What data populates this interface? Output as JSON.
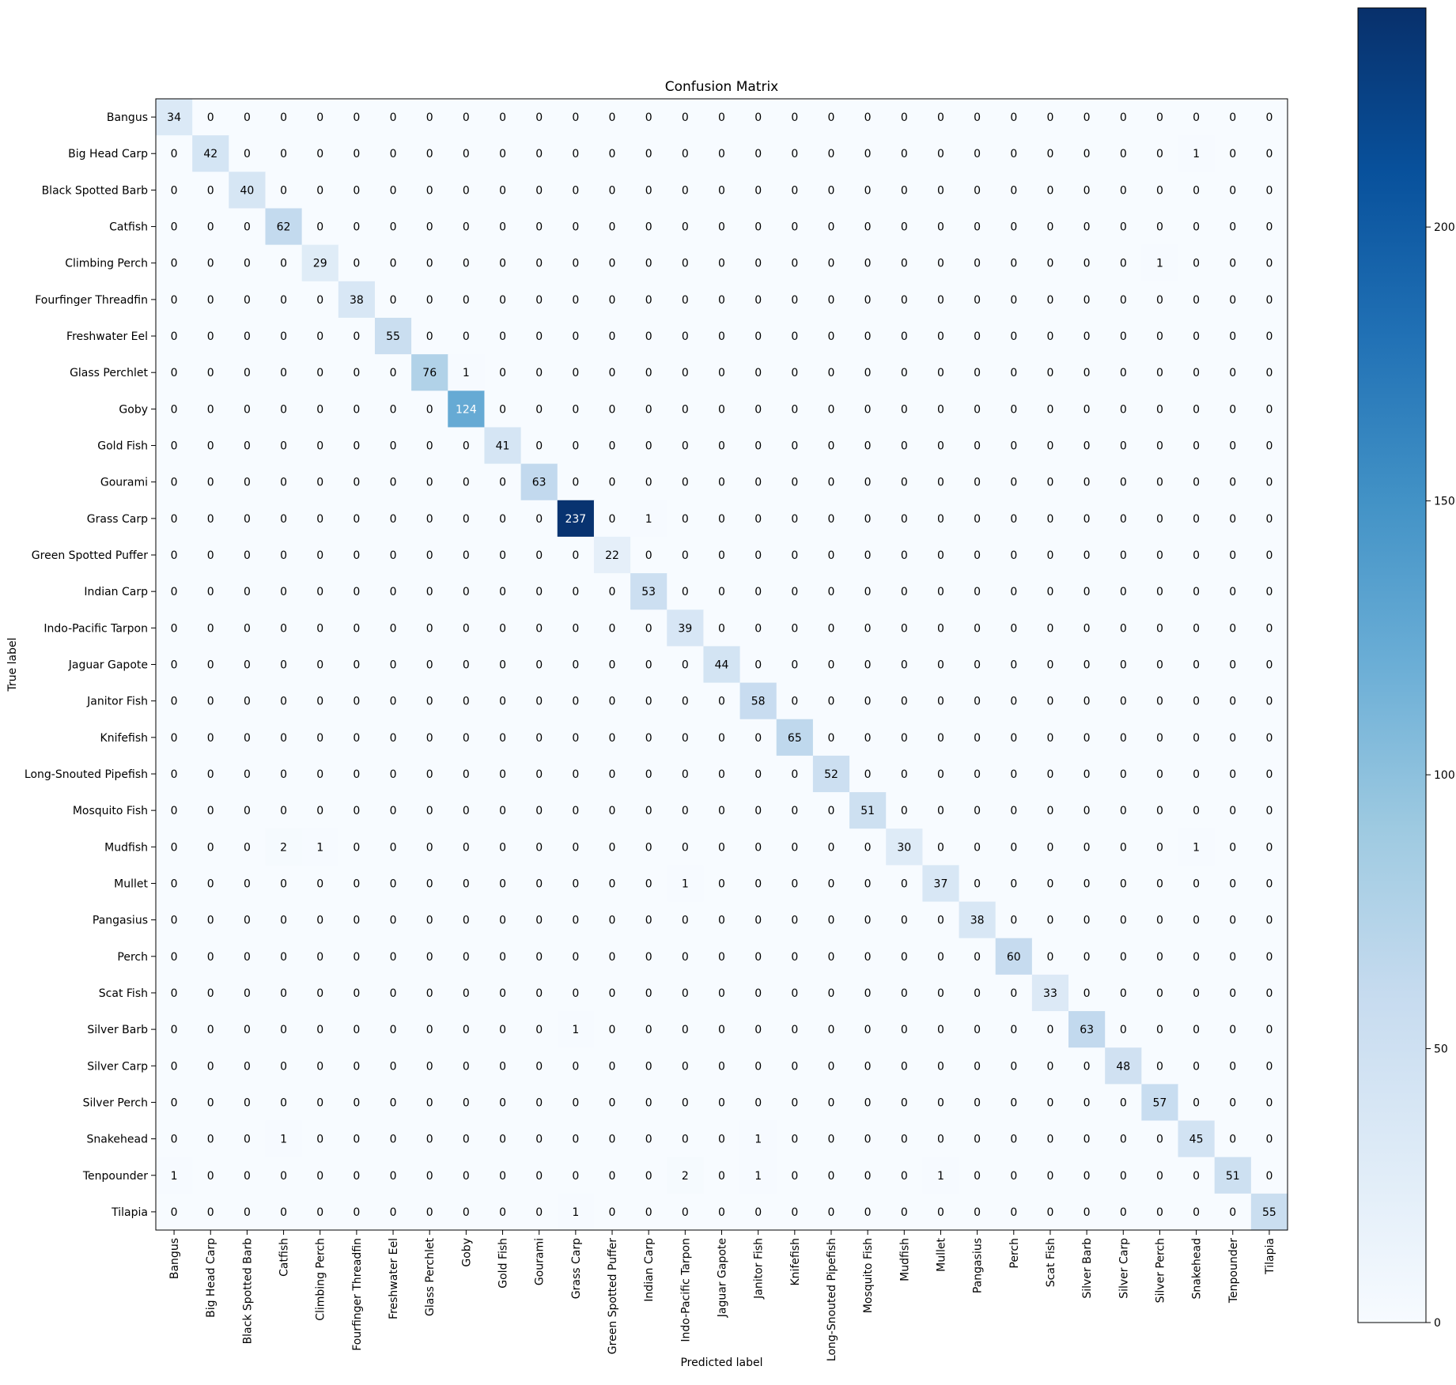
{
  "chart_data": {
    "type": "heatmap",
    "title": "Confusion Matrix",
    "xlabel": "Predicted label",
    "ylabel": "True label",
    "colormap": "Blues",
    "color_low": "#f7fbff",
    "color_high": "#08306b",
    "color_range": [
      0,
      240
    ],
    "colorbar_ticks": [
      0,
      50,
      100,
      150,
      200
    ],
    "annotation_text_colors": {
      "light_cell": "#000000",
      "dark_cell": "#ffffff"
    },
    "grid": false,
    "categories": [
      "Bangus",
      "Big Head Carp",
      "Black Spotted Barb",
      "Catfish",
      "Climbing Perch",
      "Fourfinger Threadfin",
      "Freshwater Eel",
      "Glass Perchlet",
      "Goby",
      "Gold Fish",
      "Gourami",
      "Grass Carp",
      "Green Spotted Puffer",
      "Indian Carp",
      "Indo-Pacific Tarpon",
      "Jaguar Gapote",
      "Janitor Fish",
      "Knifefish",
      "Long-Snouted Pipefish",
      "Mosquito Fish",
      "Mudfish",
      "Mullet",
      "Pangasius",
      "Perch",
      "Scat Fish",
      "Silver Barb",
      "Silver Carp",
      "Silver Perch",
      "Snakehead",
      "Tenpounder",
      "Tilapia"
    ],
    "matrix": [
      [
        34,
        0,
        0,
        0,
        0,
        0,
        0,
        0,
        0,
        0,
        0,
        0,
        0,
        0,
        0,
        0,
        0,
        0,
        0,
        0,
        0,
        0,
        0,
        0,
        0,
        0,
        0,
        0,
        0,
        0,
        0
      ],
      [
        0,
        42,
        0,
        0,
        0,
        0,
        0,
        0,
        0,
        0,
        0,
        0,
        0,
        0,
        0,
        0,
        0,
        0,
        0,
        0,
        0,
        0,
        0,
        0,
        0,
        0,
        0,
        0,
        1,
        0,
        0
      ],
      [
        0,
        0,
        40,
        0,
        0,
        0,
        0,
        0,
        0,
        0,
        0,
        0,
        0,
        0,
        0,
        0,
        0,
        0,
        0,
        0,
        0,
        0,
        0,
        0,
        0,
        0,
        0,
        0,
        0,
        0,
        0
      ],
      [
        0,
        0,
        0,
        62,
        0,
        0,
        0,
        0,
        0,
        0,
        0,
        0,
        0,
        0,
        0,
        0,
        0,
        0,
        0,
        0,
        0,
        0,
        0,
        0,
        0,
        0,
        0,
        0,
        0,
        0,
        0
      ],
      [
        0,
        0,
        0,
        0,
        29,
        0,
        0,
        0,
        0,
        0,
        0,
        0,
        0,
        0,
        0,
        0,
        0,
        0,
        0,
        0,
        0,
        0,
        0,
        0,
        0,
        0,
        0,
        1,
        0,
        0,
        0
      ],
      [
        0,
        0,
        0,
        0,
        0,
        38,
        0,
        0,
        0,
        0,
        0,
        0,
        0,
        0,
        0,
        0,
        0,
        0,
        0,
        0,
        0,
        0,
        0,
        0,
        0,
        0,
        0,
        0,
        0,
        0,
        0
      ],
      [
        0,
        0,
        0,
        0,
        0,
        0,
        55,
        0,
        0,
        0,
        0,
        0,
        0,
        0,
        0,
        0,
        0,
        0,
        0,
        0,
        0,
        0,
        0,
        0,
        0,
        0,
        0,
        0,
        0,
        0,
        0
      ],
      [
        0,
        0,
        0,
        0,
        0,
        0,
        0,
        76,
        1,
        0,
        0,
        0,
        0,
        0,
        0,
        0,
        0,
        0,
        0,
        0,
        0,
        0,
        0,
        0,
        0,
        0,
        0,
        0,
        0,
        0,
        0
      ],
      [
        0,
        0,
        0,
        0,
        0,
        0,
        0,
        0,
        124,
        0,
        0,
        0,
        0,
        0,
        0,
        0,
        0,
        0,
        0,
        0,
        0,
        0,
        0,
        0,
        0,
        0,
        0,
        0,
        0,
        0,
        0
      ],
      [
        0,
        0,
        0,
        0,
        0,
        0,
        0,
        0,
        0,
        41,
        0,
        0,
        0,
        0,
        0,
        0,
        0,
        0,
        0,
        0,
        0,
        0,
        0,
        0,
        0,
        0,
        0,
        0,
        0,
        0,
        0
      ],
      [
        0,
        0,
        0,
        0,
        0,
        0,
        0,
        0,
        0,
        0,
        63,
        0,
        0,
        0,
        0,
        0,
        0,
        0,
        0,
        0,
        0,
        0,
        0,
        0,
        0,
        0,
        0,
        0,
        0,
        0,
        0
      ],
      [
        0,
        0,
        0,
        0,
        0,
        0,
        0,
        0,
        0,
        0,
        0,
        237,
        0,
        1,
        0,
        0,
        0,
        0,
        0,
        0,
        0,
        0,
        0,
        0,
        0,
        0,
        0,
        0,
        0,
        0,
        0
      ],
      [
        0,
        0,
        0,
        0,
        0,
        0,
        0,
        0,
        0,
        0,
        0,
        0,
        22,
        0,
        0,
        0,
        0,
        0,
        0,
        0,
        0,
        0,
        0,
        0,
        0,
        0,
        0,
        0,
        0,
        0,
        0
      ],
      [
        0,
        0,
        0,
        0,
        0,
        0,
        0,
        0,
        0,
        0,
        0,
        0,
        0,
        53,
        0,
        0,
        0,
        0,
        0,
        0,
        0,
        0,
        0,
        0,
        0,
        0,
        0,
        0,
        0,
        0,
        0
      ],
      [
        0,
        0,
        0,
        0,
        0,
        0,
        0,
        0,
        0,
        0,
        0,
        0,
        0,
        0,
        39,
        0,
        0,
        0,
        0,
        0,
        0,
        0,
        0,
        0,
        0,
        0,
        0,
        0,
        0,
        0,
        0
      ],
      [
        0,
        0,
        0,
        0,
        0,
        0,
        0,
        0,
        0,
        0,
        0,
        0,
        0,
        0,
        0,
        44,
        0,
        0,
        0,
        0,
        0,
        0,
        0,
        0,
        0,
        0,
        0,
        0,
        0,
        0,
        0
      ],
      [
        0,
        0,
        0,
        0,
        0,
        0,
        0,
        0,
        0,
        0,
        0,
        0,
        0,
        0,
        0,
        0,
        58,
        0,
        0,
        0,
        0,
        0,
        0,
        0,
        0,
        0,
        0,
        0,
        0,
        0,
        0
      ],
      [
        0,
        0,
        0,
        0,
        0,
        0,
        0,
        0,
        0,
        0,
        0,
        0,
        0,
        0,
        0,
        0,
        0,
        65,
        0,
        0,
        0,
        0,
        0,
        0,
        0,
        0,
        0,
        0,
        0,
        0,
        0
      ],
      [
        0,
        0,
        0,
        0,
        0,
        0,
        0,
        0,
        0,
        0,
        0,
        0,
        0,
        0,
        0,
        0,
        0,
        0,
        52,
        0,
        0,
        0,
        0,
        0,
        0,
        0,
        0,
        0,
        0,
        0,
        0
      ],
      [
        0,
        0,
        0,
        0,
        0,
        0,
        0,
        0,
        0,
        0,
        0,
        0,
        0,
        0,
        0,
        0,
        0,
        0,
        0,
        51,
        0,
        0,
        0,
        0,
        0,
        0,
        0,
        0,
        0,
        0,
        0
      ],
      [
        0,
        0,
        0,
        2,
        1,
        0,
        0,
        0,
        0,
        0,
        0,
        0,
        0,
        0,
        0,
        0,
        0,
        0,
        0,
        0,
        30,
        0,
        0,
        0,
        0,
        0,
        0,
        0,
        1,
        0,
        0
      ],
      [
        0,
        0,
        0,
        0,
        0,
        0,
        0,
        0,
        0,
        0,
        0,
        0,
        0,
        0,
        1,
        0,
        0,
        0,
        0,
        0,
        0,
        37,
        0,
        0,
        0,
        0,
        0,
        0,
        0,
        0,
        0
      ],
      [
        0,
        0,
        0,
        0,
        0,
        0,
        0,
        0,
        0,
        0,
        0,
        0,
        0,
        0,
        0,
        0,
        0,
        0,
        0,
        0,
        0,
        0,
        38,
        0,
        0,
        0,
        0,
        0,
        0,
        0,
        0
      ],
      [
        0,
        0,
        0,
        0,
        0,
        0,
        0,
        0,
        0,
        0,
        0,
        0,
        0,
        0,
        0,
        0,
        0,
        0,
        0,
        0,
        0,
        0,
        0,
        60,
        0,
        0,
        0,
        0,
        0,
        0,
        0
      ],
      [
        0,
        0,
        0,
        0,
        0,
        0,
        0,
        0,
        0,
        0,
        0,
        0,
        0,
        0,
        0,
        0,
        0,
        0,
        0,
        0,
        0,
        0,
        0,
        0,
        33,
        0,
        0,
        0,
        0,
        0,
        0
      ],
      [
        0,
        0,
        0,
        0,
        0,
        0,
        0,
        0,
        0,
        0,
        0,
        1,
        0,
        0,
        0,
        0,
        0,
        0,
        0,
        0,
        0,
        0,
        0,
        0,
        0,
        63,
        0,
        0,
        0,
        0,
        0
      ],
      [
        0,
        0,
        0,
        0,
        0,
        0,
        0,
        0,
        0,
        0,
        0,
        0,
        0,
        0,
        0,
        0,
        0,
        0,
        0,
        0,
        0,
        0,
        0,
        0,
        0,
        0,
        48,
        0,
        0,
        0,
        0
      ],
      [
        0,
        0,
        0,
        0,
        0,
        0,
        0,
        0,
        0,
        0,
        0,
        0,
        0,
        0,
        0,
        0,
        0,
        0,
        0,
        0,
        0,
        0,
        0,
        0,
        0,
        0,
        0,
        57,
        0,
        0,
        0
      ],
      [
        0,
        0,
        0,
        1,
        0,
        0,
        0,
        0,
        0,
        0,
        0,
        0,
        0,
        0,
        0,
        0,
        1,
        0,
        0,
        0,
        0,
        0,
        0,
        0,
        0,
        0,
        0,
        0,
        45,
        0,
        0
      ],
      [
        1,
        0,
        0,
        0,
        0,
        0,
        0,
        0,
        0,
        0,
        0,
        0,
        0,
        0,
        2,
        0,
        1,
        0,
        0,
        0,
        0,
        1,
        0,
        0,
        0,
        0,
        0,
        0,
        0,
        51,
        0
      ],
      [
        0,
        0,
        0,
        0,
        0,
        0,
        0,
        0,
        0,
        0,
        0,
        1,
        0,
        0,
        0,
        0,
        0,
        0,
        0,
        0,
        0,
        0,
        0,
        0,
        0,
        0,
        0,
        0,
        0,
        0,
        55
      ]
    ]
  }
}
